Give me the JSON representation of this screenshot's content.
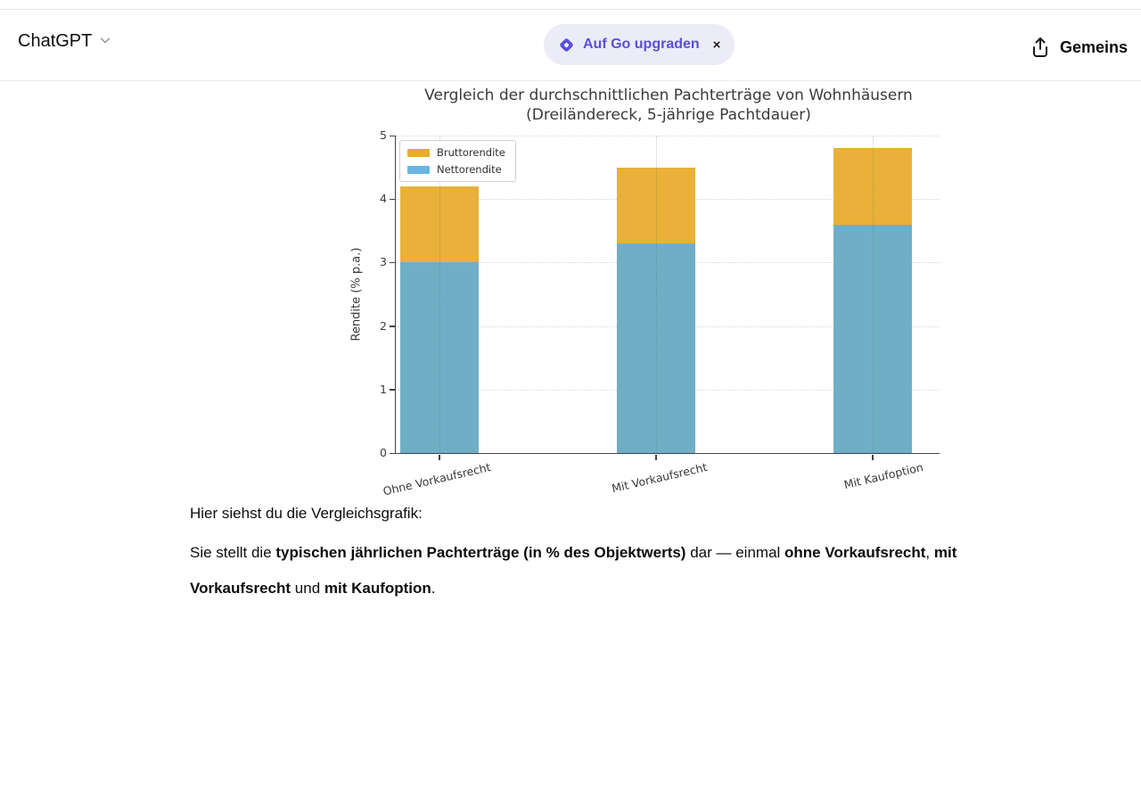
{
  "header": {
    "model_switcher": "ChatGPT",
    "upgrade_pill": {
      "label": "Auf Go upgraden",
      "close": "×"
    },
    "share_label": "Gemeins",
    "accent_purple": "#5a50d6",
    "pill_bg": "#ececf8"
  },
  "chart_data": {
    "type": "bar",
    "stacked": true,
    "title_line1": "Vergleich der durchschnittlichen Pachterträge von Wohnhäusern",
    "title_line2": "(Dreiländereck, 5-jährige Pachtdauer)",
    "ylabel": "Rendite (% p.a.)",
    "xlabel": "",
    "categories": [
      "Ohne Vorkaufsrecht",
      "Mit Vorkaufsrecht",
      "Mit Kaufoption"
    ],
    "series": [
      {
        "name": "Nettorendite",
        "values": [
          3.0,
          3.3,
          3.6
        ],
        "color": "#6fafc6"
      },
      {
        "name": "Bruttorendite",
        "values": [
          1.2,
          1.2,
          1.2
        ],
        "color": "#e9b13a"
      }
    ],
    "bar_totals": [
      4.2,
      4.5,
      4.8
    ],
    "ylim": [
      0,
      5
    ],
    "yticks": [
      0,
      1,
      2,
      3,
      4,
      5
    ],
    "grid": "dotted",
    "legend_position": "upper left",
    "legend_items": [
      {
        "label": "Bruttorendite",
        "color": "#e9ab32"
      },
      {
        "label": "Nettorendite",
        "color": "#68b6e2"
      }
    ]
  },
  "message": {
    "intro": "Hier siehst du die Vergleichsgrafik:",
    "paragraph": [
      {
        "text": "Sie stellt die ",
        "bold": false
      },
      {
        "text": "typischen jährlichen Pachterträge (in % des Objektwerts)",
        "bold": true
      },
      {
        "text": " dar — einmal ",
        "bold": false
      },
      {
        "text": "ohne Vorkaufsrecht",
        "bold": true
      },
      {
        "text": ", ",
        "bold": false
      },
      {
        "text": "mit Vorkaufsrecht",
        "bold": true
      },
      {
        "text": " und ",
        "bold": false
      },
      {
        "text": "mit Kaufoption",
        "bold": true
      },
      {
        "text": ".",
        "bold": false
      }
    ]
  }
}
